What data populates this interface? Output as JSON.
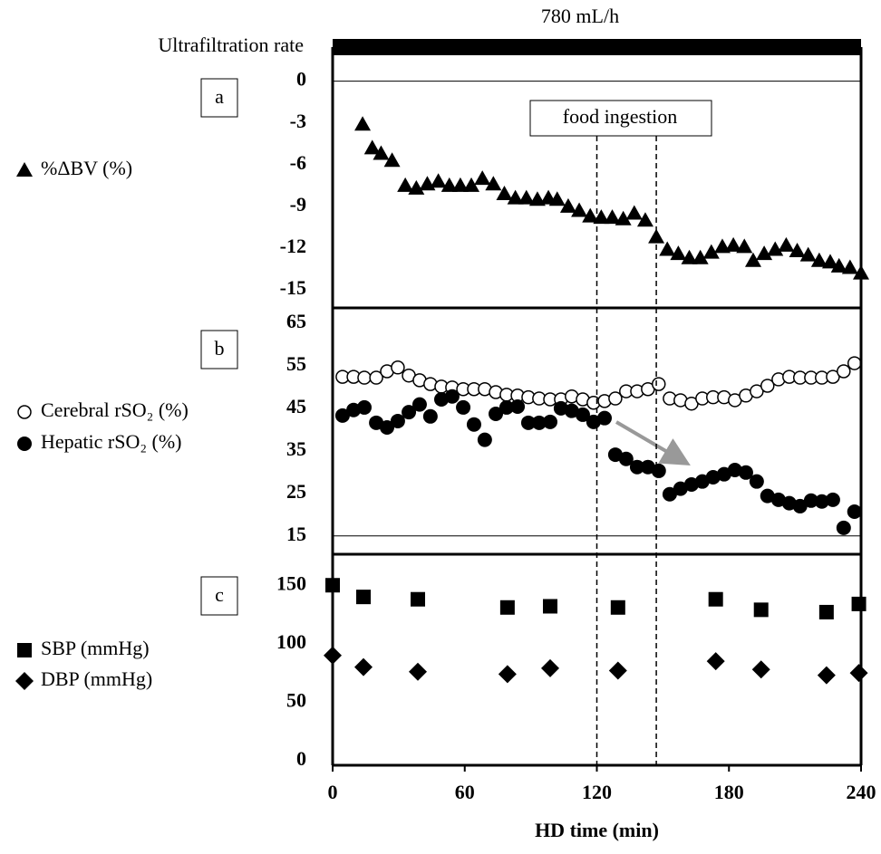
{
  "header": {
    "rate_label": "Ultrafiltration rate",
    "rate_value": "780 mL/h"
  },
  "food_ingestion": {
    "label": "food ingestion",
    "x": [
      120,
      147
    ]
  },
  "chart_data": [
    {
      "type": "scatter",
      "panel_label": "a",
      "xlim": [
        0,
        240
      ],
      "ylim": [
        -16.3,
        1.8
      ],
      "yticks": [
        0,
        -3,
        -6,
        -9,
        -12,
        -15
      ],
      "hline": 0,
      "series": [
        {
          "name": "%ΔBV (%)",
          "marker": "triangle",
          "color": "#000000",
          "x": [
            13.6,
            18,
            22,
            27,
            33,
            38,
            43,
            48,
            53,
            58,
            63,
            68,
            73,
            78,
            83,
            88,
            93,
            98,
            102,
            107,
            112,
            117,
            122,
            127,
            132,
            137,
            142,
            147,
            152,
            157,
            162,
            167,
            172,
            177,
            182,
            187,
            191,
            196,
            201,
            206,
            211,
            216,
            221,
            226,
            230,
            235,
            240
          ],
          "values": [
            -3.1,
            -4.8,
            -5.2,
            -5.7,
            -7.5,
            -7.7,
            -7.4,
            -7.2,
            -7.5,
            -7.5,
            -7.5,
            -7.0,
            -7.4,
            -8.1,
            -8.4,
            -8.4,
            -8.5,
            -8.4,
            -8.5,
            -9.0,
            -9.3,
            -9.7,
            -9.8,
            -9.8,
            -9.9,
            -9.5,
            -10.0,
            -11.2,
            -12.1,
            -12.4,
            -12.7,
            -12.7,
            -12.3,
            -11.9,
            -11.8,
            -11.9,
            -12.9,
            -12.4,
            -12.1,
            -11.8,
            -12.2,
            -12.5,
            -12.9,
            -13.0,
            -13.3,
            -13.4,
            -13.8
          ]
        }
      ]
    },
    {
      "type": "scatter",
      "panel_label": "b",
      "xlim": [
        0,
        240
      ],
      "ylim": [
        10.7,
        68.6
      ],
      "yticks": [
        65,
        55,
        45,
        35,
        25,
        15
      ],
      "hline": 15,
      "series": [
        {
          "name": "Cerebral rSO₂ (%)",
          "marker": "circle-open",
          "color": "#000000",
          "x": [
            4.5,
            9.5,
            14.4,
            19.8,
            24.7,
            29.6,
            34.6,
            39.5,
            44.4,
            49.4,
            54.3,
            59.3,
            64.2,
            69.1,
            74.1,
            79,
            84,
            88.9,
            93.8,
            98.8,
            103.7,
            108.6,
            113.6,
            118.5,
            123.5,
            128.4,
            133.3,
            138.3,
            143.2,
            148.1,
            153.1,
            158,
            163,
            167.9,
            172.8,
            177.8,
            182.7,
            187.7,
            192.6,
            197.5,
            202.5,
            207.4,
            212.3,
            217.3,
            222.2,
            227.2,
            232.1,
            237
          ],
          "values": [
            52.4,
            52.4,
            52.2,
            52.2,
            53.7,
            54.6,
            52.7,
            51.6,
            50.7,
            50.1,
            49.9,
            49.5,
            49.5,
            49.5,
            48.8,
            48.2,
            48,
            47.6,
            47.3,
            47.1,
            47.1,
            47.8,
            47.1,
            46.3,
            46.7,
            47.3,
            49,
            49,
            49.5,
            50.7,
            47.3,
            46.9,
            46.1,
            47.3,
            47.6,
            47.6,
            46.9,
            48,
            49,
            50.3,
            51.8,
            52.4,
            52.2,
            52.2,
            52.2,
            52.4,
            53.7,
            55.6
          ]
        },
        {
          "name": "Hepatic rSO₂ (%)",
          "marker": "circle",
          "color": "#000000",
          "x": [
            4.5,
            9.5,
            14.4,
            19.8,
            24.7,
            29.6,
            34.6,
            39.5,
            44.4,
            49.4,
            54.3,
            59.3,
            64.2,
            69.1,
            74.1,
            79,
            84,
            88.9,
            93.8,
            98.8,
            103.7,
            108.6,
            113.6,
            118.5,
            123.5,
            128.4,
            133.3,
            138.3,
            143.2,
            148.1,
            153.1,
            158,
            163,
            167.9,
            172.8,
            177.8,
            182.7,
            187.7,
            192.6,
            197.5,
            202.5,
            207.4,
            212.3,
            217.3,
            222.2,
            227.2,
            232.1,
            237
          ],
          "values": [
            43.3,
            44.6,
            45.2,
            41.6,
            40.5,
            42,
            44.1,
            45.9,
            43.1,
            47.1,
            47.8,
            45.2,
            41.2,
            37.6,
            43.7,
            45.2,
            45.4,
            41.6,
            41.6,
            41.8,
            45,
            44.4,
            43.5,
            41.8,
            42.7,
            34.1,
            33.1,
            31.2,
            31.2,
            30.3,
            24.8,
            26.1,
            27.1,
            27.8,
            28.8,
            29.5,
            30.5,
            29.9,
            27.8,
            24.4,
            23.5,
            22.7,
            22,
            23.3,
            23.1,
            23.5,
            16.9,
            20.7
          ]
        }
      ]
    },
    {
      "type": "scatter",
      "panel_label": "c",
      "xlim": [
        0,
        240
      ],
      "ylim": [
        -3.9,
        176.5
      ],
      "yticks": [
        150,
        100,
        50,
        0
      ],
      "xticks": [
        0,
        60,
        120,
        180,
        240
      ],
      "xlabel": "HD time (min)",
      "series": [
        {
          "name": "SBP  (mmHg)",
          "marker": "square",
          "color": "#000000",
          "x": [
            0,
            14,
            38.7,
            79.4,
            98.8,
            129.6,
            174,
            194.6,
            224.3,
            239
          ],
          "values": [
            150,
            140,
            138,
            131,
            132,
            131,
            138,
            129,
            127,
            134
          ]
        },
        {
          "name": "DBP (mmHg)",
          "marker": "diamond",
          "color": "#000000",
          "x": [
            0,
            14,
            38.7,
            79.4,
            98.8,
            129.6,
            174,
            194.6,
            224.3,
            239
          ],
          "values": [
            90,
            80,
            76,
            74,
            79,
            77,
            85,
            78,
            73,
            75
          ]
        }
      ]
    }
  ]
}
